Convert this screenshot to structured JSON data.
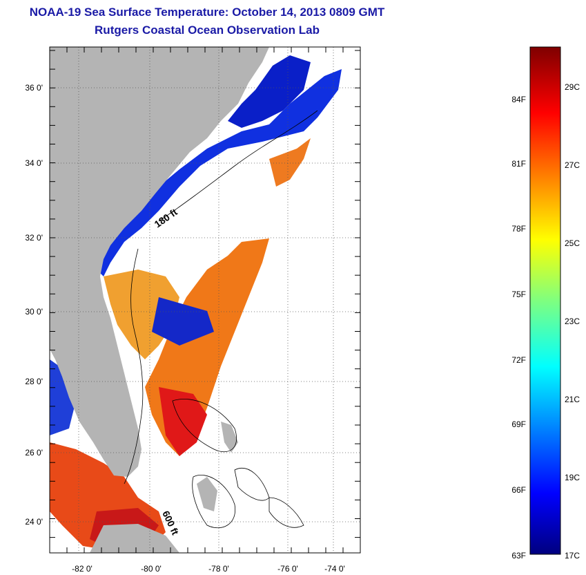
{
  "title": "NOAA-19 Sea Surface Temperature:  October 14, 2013 0809 GMT",
  "subtitle": "Rutgers Coastal Ocean Observation Lab",
  "map": {
    "lat_ticks": [
      "36 0'",
      "34 0'",
      "32 0'",
      "30 0'",
      "28 0'",
      "26 0'",
      "24 0'"
    ],
    "lon_ticks": [
      "-82 0'",
      "-80 0'",
      "-78 0'",
      "-76 0'",
      "-74 0'"
    ],
    "contour_labels": [
      "180 ft",
      "600 ft"
    ],
    "colors": {
      "land": "#b4b4b4",
      "cloud": "#ffffff",
      "grid": "#000000"
    }
  },
  "colorbar": {
    "fahrenheit": [
      "84F",
      "81F",
      "78F",
      "75F",
      "72F",
      "69F",
      "66F",
      "63F"
    ],
    "celsius": [
      "29C",
      "27C",
      "25C",
      "23C",
      "21C",
      "19C",
      "17C"
    ],
    "range_c": [
      17,
      30
    ],
    "colormap": "jet"
  }
}
